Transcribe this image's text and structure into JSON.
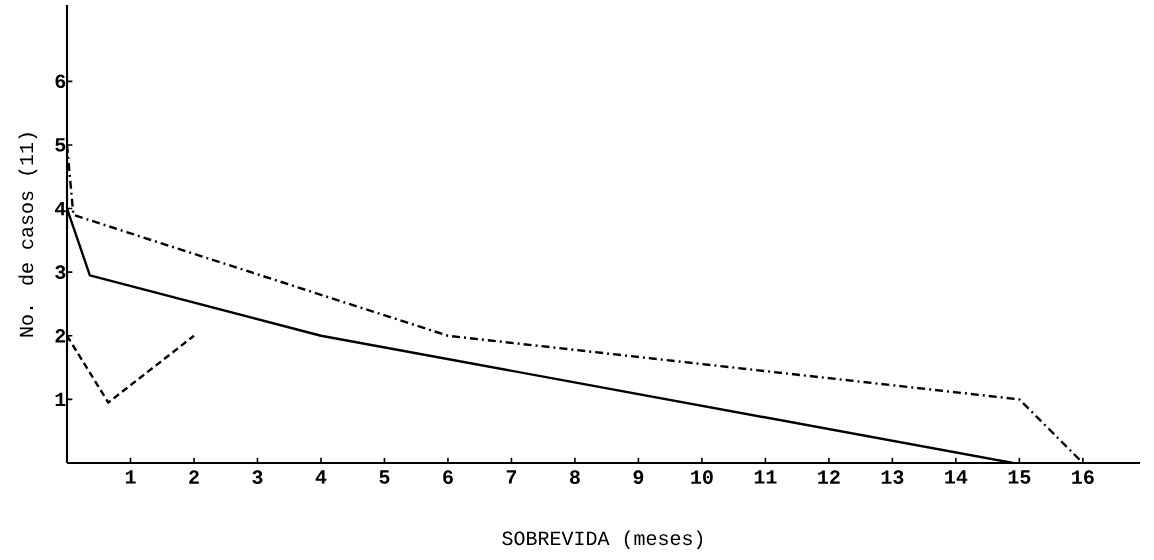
{
  "chart_data": {
    "type": "line",
    "xlabel": "SOBREVIDA (meses)",
    "ylabel": "No. de casos (11)",
    "xlim": [
      0,
      16.9
    ],
    "ylim": [
      0,
      7.2
    ],
    "xticks": [
      1,
      2,
      3,
      4,
      5,
      6,
      7,
      8,
      9,
      10,
      11,
      12,
      13,
      14,
      15,
      16
    ],
    "yticks": [
      1,
      2,
      3,
      4,
      5,
      6
    ],
    "marker": "none",
    "series": [
      {
        "color": "#000000",
        "line_style": "solid",
        "x": [
          0,
          0.36,
          4,
          14.9
        ],
        "values": [
          4,
          2.95,
          2,
          0
        ]
      },
      {
        "color": "#000000",
        "line_style": "dashdot",
        "x": [
          0,
          0.1,
          6,
          15,
          16
        ],
        "values": [
          5,
          3.9,
          2,
          1,
          0
        ]
      },
      {
        "color": "#000000",
        "line_style": "dashed",
        "x": [
          0,
          0.65,
          2
        ],
        "values": [
          2,
          0.95,
          2
        ]
      }
    ]
  }
}
